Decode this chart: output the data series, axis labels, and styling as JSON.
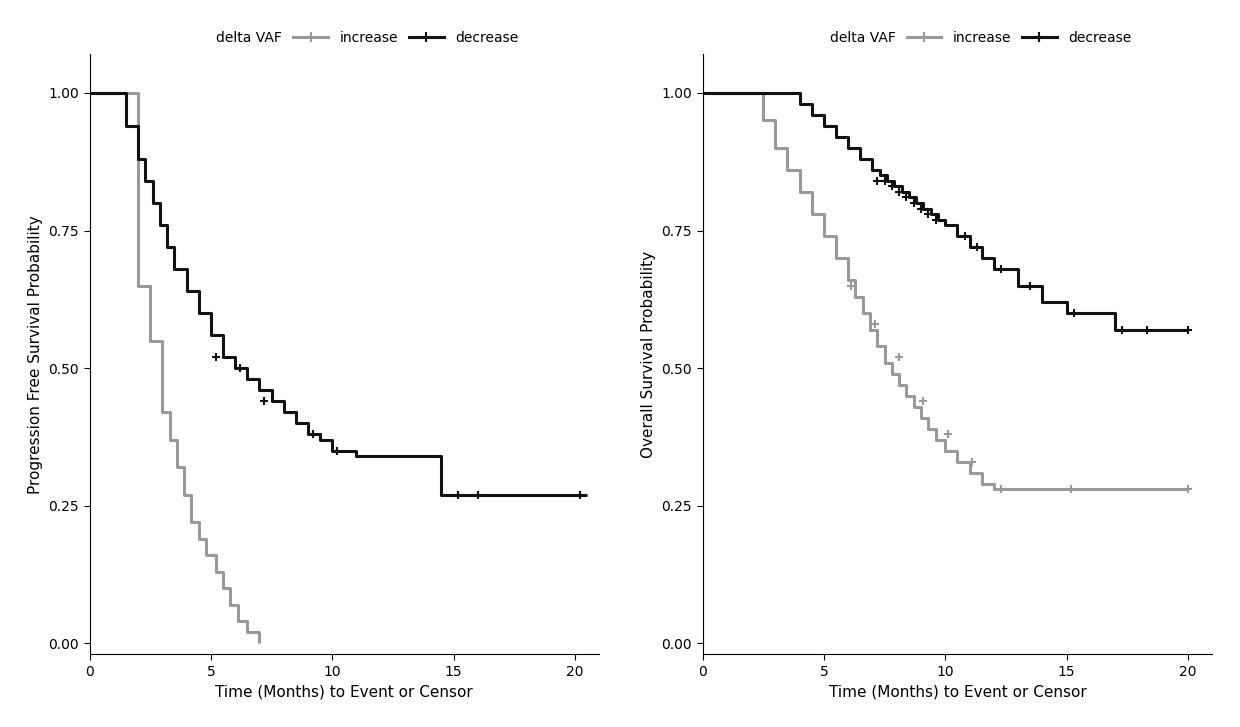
{
  "pfs": {
    "increase": {
      "times": [
        0,
        1.5,
        2.0,
        2.5,
        3.0,
        3.3,
        3.6,
        3.9,
        4.2,
        4.5,
        4.8,
        5.2,
        5.5,
        5.8,
        6.1,
        6.5,
        7.0
      ],
      "surv": [
        1.0,
        1.0,
        0.65,
        0.55,
        0.42,
        0.37,
        0.32,
        0.27,
        0.22,
        0.19,
        0.16,
        0.13,
        0.1,
        0.07,
        0.04,
        0.02,
        0.0
      ],
      "censors_t": [],
      "censors_s": []
    },
    "decrease": {
      "times": [
        0,
        1.0,
        1.5,
        2.0,
        2.3,
        2.6,
        2.9,
        3.2,
        3.5,
        4.0,
        4.5,
        5.0,
        5.5,
        6.0,
        6.5,
        7.0,
        7.5,
        8.0,
        8.5,
        9.0,
        9.5,
        10.0,
        11.0,
        11.5,
        14.5,
        15.0,
        15.5,
        20.0,
        20.5
      ],
      "surv": [
        1.0,
        1.0,
        0.94,
        0.88,
        0.84,
        0.8,
        0.76,
        0.72,
        0.68,
        0.64,
        0.6,
        0.56,
        0.52,
        0.5,
        0.48,
        0.46,
        0.44,
        0.42,
        0.4,
        0.38,
        0.37,
        0.35,
        0.34,
        0.34,
        0.27,
        0.27,
        0.27,
        0.27,
        0.27
      ],
      "censors_t": [
        5.2,
        6.2,
        7.2,
        9.2,
        10.2,
        15.2,
        16.0,
        20.2
      ],
      "censors_s": [
        0.52,
        0.5,
        0.44,
        0.38,
        0.35,
        0.27,
        0.27,
        0.27
      ]
    }
  },
  "os": {
    "increase": {
      "times": [
        0,
        2.5,
        3.0,
        3.5,
        4.0,
        4.5,
        5.0,
        5.5,
        6.0,
        6.3,
        6.6,
        6.9,
        7.2,
        7.5,
        7.8,
        8.1,
        8.4,
        8.7,
        9.0,
        9.3,
        9.6,
        10.0,
        10.5,
        11.0,
        11.5,
        12.0,
        12.5,
        15.0,
        20.0
      ],
      "surv": [
        1.0,
        0.95,
        0.9,
        0.86,
        0.82,
        0.78,
        0.74,
        0.7,
        0.66,
        0.63,
        0.6,
        0.57,
        0.54,
        0.51,
        0.49,
        0.47,
        0.45,
        0.43,
        0.41,
        0.39,
        0.37,
        0.35,
        0.33,
        0.31,
        0.29,
        0.28,
        0.28,
        0.28,
        0.28
      ],
      "censors_t": [
        6.1,
        7.1,
        8.1,
        9.1,
        10.1,
        11.1,
        12.3,
        15.2,
        20.0
      ],
      "censors_s": [
        0.65,
        0.58,
        0.52,
        0.44,
        0.38,
        0.33,
        0.28,
        0.28,
        0.28
      ]
    },
    "decrease": {
      "times": [
        0,
        3.5,
        4.0,
        4.5,
        5.0,
        5.5,
        6.0,
        6.5,
        7.0,
        7.3,
        7.6,
        7.9,
        8.2,
        8.5,
        8.8,
        9.1,
        9.4,
        9.7,
        10.0,
        10.5,
        11.0,
        11.5,
        12.0,
        13.0,
        14.0,
        15.0,
        17.0,
        18.0,
        20.0
      ],
      "surv": [
        1.0,
        1.0,
        0.98,
        0.96,
        0.94,
        0.92,
        0.9,
        0.88,
        0.86,
        0.85,
        0.84,
        0.83,
        0.82,
        0.81,
        0.8,
        0.79,
        0.78,
        0.77,
        0.76,
        0.74,
        0.72,
        0.7,
        0.68,
        0.65,
        0.62,
        0.6,
        0.57,
        0.57,
        0.57
      ],
      "censors_t": [
        7.2,
        7.5,
        7.8,
        8.1,
        8.4,
        8.7,
        9.0,
        9.3,
        9.6,
        10.8,
        11.3,
        12.3,
        13.5,
        15.3,
        17.3,
        18.3,
        20.0
      ],
      "censors_s": [
        0.84,
        0.84,
        0.83,
        0.82,
        0.81,
        0.8,
        0.79,
        0.78,
        0.77,
        0.74,
        0.72,
        0.68,
        0.65,
        0.6,
        0.57,
        0.57,
        0.57
      ]
    }
  },
  "colors": {
    "increase": "#999999",
    "decrease": "#111111"
  },
  "linewidth": 2.2,
  "legend_label_prefix": "delta VAF",
  "legend_increase": "increase",
  "legend_decrease": "decrease",
  "pfs_ylabel": "Progression Free Survival Probability",
  "os_ylabel": "Overall Survival Probability",
  "xlabel": "Time (Months) to Event or Censor",
  "xlim": [
    0,
    21
  ],
  "ylim": [
    -0.02,
    1.07
  ],
  "xticks": [
    0,
    5,
    10,
    15,
    20
  ],
  "yticks": [
    0.0,
    0.25,
    0.5,
    0.75,
    1.0
  ],
  "background_color": "#ffffff"
}
